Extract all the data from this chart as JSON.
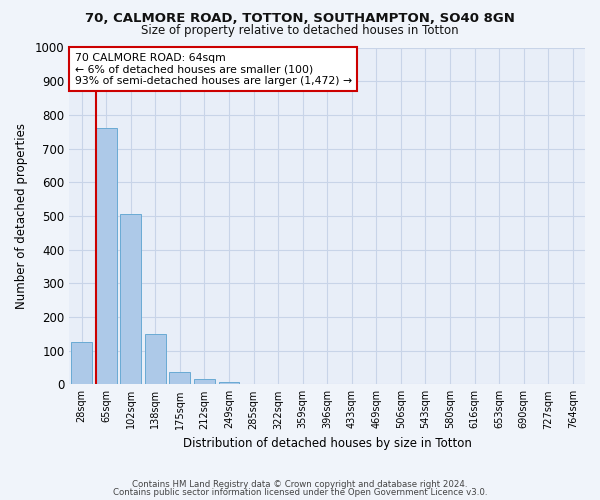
{
  "title1": "70, CALMORE ROAD, TOTTON, SOUTHAMPTON, SO40 8GN",
  "title2": "Size of property relative to detached houses in Totton",
  "xlabel": "Distribution of detached houses by size in Totton",
  "ylabel": "Number of detached properties",
  "categories": [
    "28sqm",
    "65sqm",
    "102sqm",
    "138sqm",
    "175sqm",
    "212sqm",
    "249sqm",
    "285sqm",
    "322sqm",
    "359sqm",
    "396sqm",
    "433sqm",
    "469sqm",
    "506sqm",
    "543sqm",
    "580sqm",
    "616sqm",
    "653sqm",
    "690sqm",
    "727sqm",
    "764sqm"
  ],
  "bar_heights": [
    125,
    760,
    505,
    150,
    38,
    15,
    8,
    0,
    0,
    0,
    0,
    0,
    0,
    0,
    0,
    0,
    0,
    0,
    0,
    0,
    0
  ],
  "bar_color": "#adc9e8",
  "bar_edge_color": "#6aaad4",
  "vline_color": "#cc0000",
  "annotation_line1": "70 CALMORE ROAD: 64sqm",
  "annotation_line2": "← 6% of detached houses are smaller (100)",
  "annotation_line3": "93% of semi-detached houses are larger (1,472) →",
  "annotation_box_color": "#cc0000",
  "ylim": [
    0,
    1000
  ],
  "yticks": [
    0,
    100,
    200,
    300,
    400,
    500,
    600,
    700,
    800,
    900,
    1000
  ],
  "grid_color": "#c8d4e8",
  "background_color": "#e8eef8",
  "fig_background": "#f0f4fa",
  "footer1": "Contains HM Land Registry data © Crown copyright and database right 2024.",
  "footer2": "Contains public sector information licensed under the Open Government Licence v3.0."
}
